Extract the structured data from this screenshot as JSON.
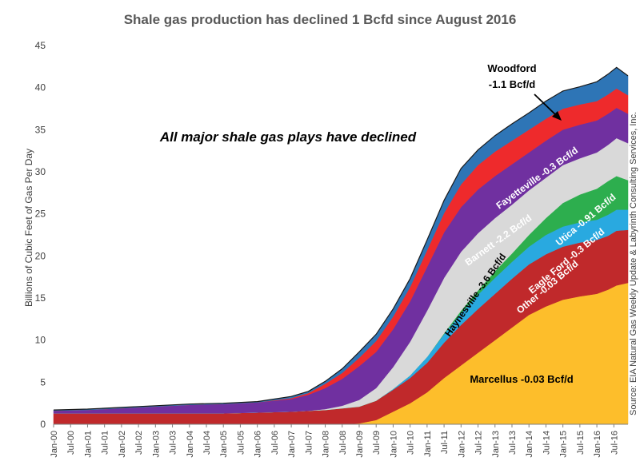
{
  "chart_data": {
    "type": "area",
    "stacked": true,
    "title": "Shale gas production has declined 1 Bcfd since August 2016",
    "ylabel": "Billions of Cubic Feet of Gas Per Day",
    "xlabel": "",
    "ylim": [
      0,
      45
    ],
    "yticks": [
      0,
      5,
      10,
      15,
      20,
      25,
      30,
      35,
      40,
      45
    ],
    "xlim": [
      2000.0,
      2016.917
    ],
    "x_tick_labels": [
      "Jan-00",
      "Jul-00",
      "Jan-01",
      "Jul-01",
      "Jan-02",
      "Jul-02",
      "Jan-03",
      "Jul-03",
      "Jan-04",
      "Jul-04",
      "Jan-05",
      "Jul-05",
      "Jan-06",
      "Jul-06",
      "Jan-07",
      "Jul-07",
      "Jan-08",
      "Jul-08",
      "Jan-09",
      "Jul-09",
      "Jan-10",
      "Jul-10",
      "Jan-11",
      "Jul-11",
      "Jan-12",
      "Jul-12",
      "Jan-13",
      "Jul-13",
      "Jan-14",
      "Jul-14",
      "Jan-15",
      "Jul-15",
      "Jan-16",
      "Jul-16"
    ],
    "grid": false,
    "legend": "none (series labelled directly on chart)",
    "x": [
      2000.0,
      2001.0,
      2002.0,
      2003.0,
      2004.0,
      2005.0,
      2006.0,
      2007.0,
      2007.5,
      2008.0,
      2008.5,
      2009.0,
      2009.5,
      2010.0,
      2010.5,
      2011.0,
      2011.5,
      2012.0,
      2012.5,
      2013.0,
      2013.5,
      2014.0,
      2014.5,
      2015.0,
      2015.5,
      2016.0,
      2016.33,
      2016.58,
      2016.917
    ],
    "series": [
      {
        "name": "Marcellus",
        "color": "#FDBE2B",
        "values": [
          0,
          0,
          0,
          0,
          0,
          0,
          0,
          0,
          0,
          0,
          0,
          0.1,
          0.5,
          1.5,
          2.5,
          3.8,
          5.5,
          7.0,
          8.5,
          10.0,
          11.5,
          13.0,
          14.0,
          14.8,
          15.2,
          15.5,
          16.0,
          16.5,
          16.8
        ]
      },
      {
        "name": "Other",
        "color": "#C0292B",
        "values": [
          1.3,
          1.3,
          1.3,
          1.3,
          1.3,
          1.3,
          1.4,
          1.5,
          1.6,
          1.7,
          1.9,
          2.0,
          2.3,
          2.6,
          3.0,
          3.5,
          4.2,
          4.8,
          5.2,
          5.5,
          5.8,
          6.0,
          6.2,
          6.3,
          6.4,
          6.4,
          6.4,
          6.5,
          6.3
        ]
      },
      {
        "name": "Eagle Ford",
        "color": "#29A9E0",
        "values": [
          0,
          0,
          0,
          0,
          0,
          0,
          0,
          0,
          0,
          0,
          0,
          0,
          0,
          0.1,
          0.3,
          0.7,
          1.0,
          1.4,
          1.7,
          1.9,
          2.0,
          2.1,
          2.3,
          2.4,
          2.4,
          2.4,
          2.5,
          2.5,
          2.4
        ]
      },
      {
        "name": "Utica",
        "color": "#2DAE4E",
        "values": [
          0,
          0,
          0,
          0,
          0,
          0,
          0,
          0,
          0,
          0,
          0,
          0,
          0,
          0,
          0,
          0,
          0.1,
          0.3,
          0.5,
          0.8,
          1.0,
          1.4,
          2.0,
          2.8,
          3.3,
          3.7,
          4.0,
          4.0,
          3.5
        ]
      },
      {
        "name": "Haynesville",
        "color": "#D9D9D9",
        "values": [
          0,
          0,
          0,
          0,
          0,
          0,
          0,
          0,
          0,
          0.1,
          0.3,
          0.8,
          1.5,
          2.6,
          4.0,
          5.5,
          6.6,
          7.0,
          6.8,
          6.3,
          5.8,
          5.3,
          4.8,
          4.5,
          4.3,
          4.3,
          4.3,
          4.5,
          4.4
        ]
      },
      {
        "name": "Barnett",
        "color": "#7030A0",
        "values": [
          0.3,
          0.4,
          0.6,
          0.8,
          1.0,
          1.1,
          1.2,
          1.5,
          1.9,
          2.5,
          3.2,
          4.0,
          4.3,
          4.5,
          4.8,
          5.2,
          5.4,
          5.3,
          5.2,
          5.0,
          4.8,
          4.5,
          4.4,
          4.2,
          4.0,
          3.8,
          3.7,
          3.6,
          3.5
        ]
      },
      {
        "name": "Fayetteville",
        "color": "#EE2A2C",
        "values": [
          0,
          0,
          0,
          0,
          0,
          0,
          0,
          0.1,
          0.2,
          0.5,
          0.7,
          1.0,
          1.3,
          1.5,
          1.7,
          2.0,
          2.3,
          2.7,
          2.9,
          2.9,
          2.8,
          2.7,
          2.6,
          2.5,
          2.4,
          2.3,
          2.3,
          2.3,
          2.2
        ]
      },
      {
        "name": "Woodford",
        "color": "#2E75B6",
        "values": [
          0.1,
          0.1,
          0.1,
          0.1,
          0.1,
          0.1,
          0.1,
          0.2,
          0.2,
          0.3,
          0.5,
          0.7,
          0.8,
          0.9,
          1.0,
          1.2,
          1.5,
          1.9,
          1.8,
          1.9,
          2.0,
          2.0,
          2.1,
          2.1,
          2.1,
          2.3,
          2.4,
          2.5,
          2.3
        ]
      }
    ],
    "annotations": {
      "headline": "All major shale gas plays have declined",
      "source": "Source: EIA Natural Gas Weekly Update & Labyrinth Consulting Services, Inc.",
      "woodford_line1": "Woodford",
      "woodford_line2": "-1.1 Bcf/d",
      "fayetteville": "Fayetteville -0.3 Bcf/d",
      "barnett": "Barnett -2.2 Bcf/d",
      "haynesville": "Haynesville -3.6 Bcf/d",
      "utica": "Utica -0.91 Bcf/d",
      "eagleford": "Eagle Ford -0.3 Bcf/d",
      "other": "Other -0.03 Bcf/d",
      "marcellus": "Marcellus -0.03 Bcf/d"
    }
  }
}
